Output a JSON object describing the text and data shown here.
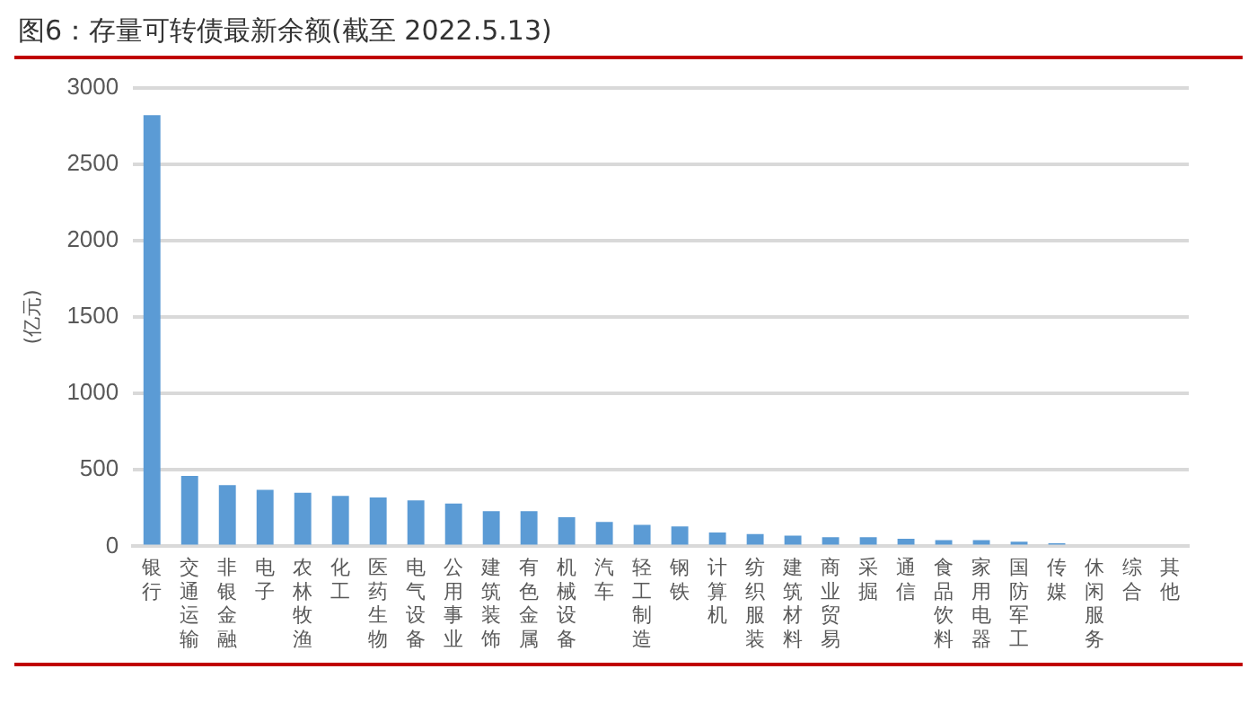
{
  "chart_data": {
    "type": "bar",
    "title": "图6：存量可转债最新余额(截至 2022.5.13)",
    "ylabel": "(亿元)",
    "categories": [
      "银行",
      "交通运输",
      "非银金融",
      "电子",
      "农林牧渔",
      "化工",
      "医药生物",
      "电气设备",
      "公用事业",
      "建筑装饰",
      "有色金属",
      "机械设备",
      "汽车",
      "轻工制造",
      "钢铁",
      "计算机",
      "纺织服装",
      "建筑材料",
      "商业贸易",
      "采掘",
      "通信",
      "食品饮料",
      "家用电器",
      "国防军工",
      "传媒",
      "休闲服务",
      "综合",
      "其他"
    ],
    "values": [
      2820,
      460,
      400,
      370,
      350,
      330,
      320,
      300,
      280,
      230,
      230,
      190,
      160,
      140,
      130,
      90,
      80,
      70,
      60,
      60,
      50,
      40,
      40,
      30,
      20,
      0,
      0,
      0
    ],
    "color": "#5b9bd5",
    "ylim": [
      0,
      3000
    ],
    "yticks": [
      0,
      500,
      1000,
      1500,
      2000,
      2500,
      3000
    ],
    "grid": "y",
    "legend": false
  }
}
